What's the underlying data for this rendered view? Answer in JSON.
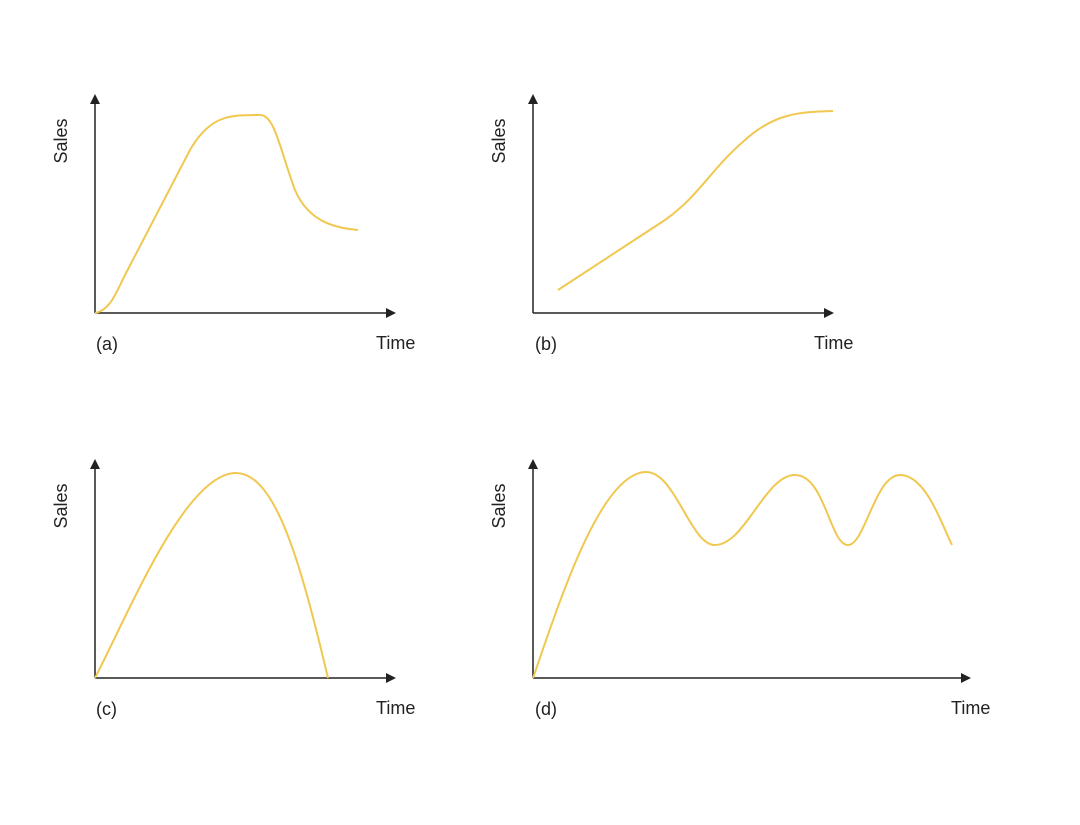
{
  "panels": [
    {
      "label": "(a)",
      "y_label": "Sales",
      "x_label": "Time"
    },
    {
      "label": "(b)",
      "y_label": "Sales",
      "x_label": "Time"
    },
    {
      "label": "(c)",
      "y_label": "Sales",
      "x_label": "Time"
    },
    {
      "label": "(d)",
      "y_label": "Sales",
      "x_label": "Time"
    }
  ]
}
